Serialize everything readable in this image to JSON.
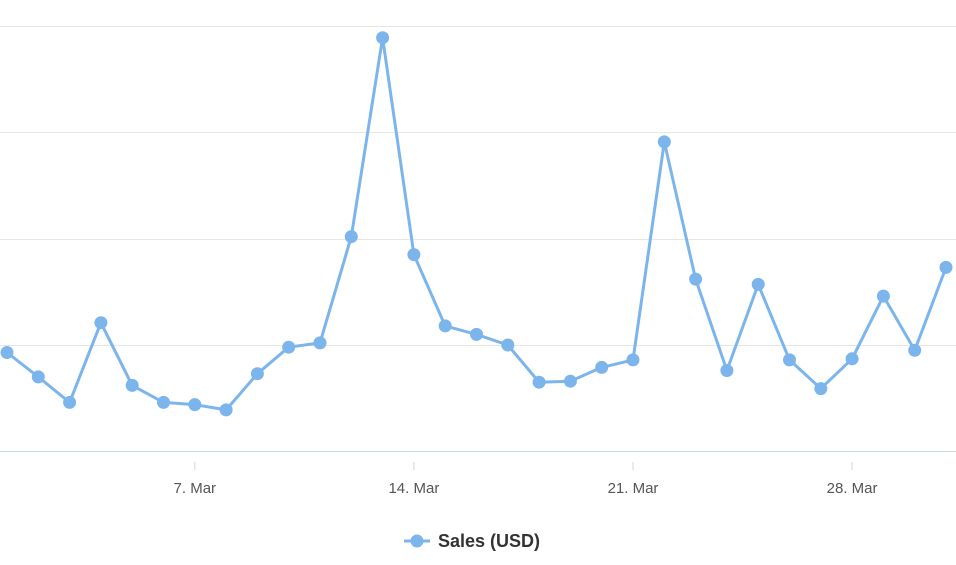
{
  "chart_data": {
    "type": "line",
    "title": "",
    "xlabel": "",
    "ylabel": "",
    "x": [
      "1. Mar",
      "2. Mar",
      "3. Mar",
      "4. Mar",
      "5. Mar",
      "6. Mar",
      "7. Mar",
      "8. Mar",
      "9. Mar",
      "10. Mar",
      "11. Mar",
      "12. Mar",
      "13. Mar",
      "14. Mar",
      "15. Mar",
      "16. Mar",
      "17. Mar",
      "18. Mar",
      "19. Mar",
      "20. Mar",
      "21. Mar",
      "22. Mar",
      "23. Mar",
      "24. Mar",
      "25. Mar",
      "26. Mar",
      "27. Mar",
      "28. Mar",
      "29. Mar",
      "30. Mar",
      "31. Mar"
    ],
    "x_ticks": [
      "7. Mar",
      "14. Mar",
      "21. Mar",
      "28. Mar"
    ],
    "series": [
      {
        "name": "Sales (USD)",
        "color": "#7cb5ec",
        "values": [
          0.93,
          0.7,
          0.46,
          1.21,
          0.62,
          0.46,
          0.44,
          0.39,
          0.73,
          0.98,
          1.02,
          2.02,
          3.89,
          1.85,
          1.18,
          1.1,
          1.0,
          0.65,
          0.66,
          0.79,
          0.86,
          2.91,
          1.62,
          0.76,
          1.57,
          0.86,
          0.59,
          0.87,
          1.46,
          0.95,
          1.73
        ]
      }
    ],
    "ylim": [
      -0.1,
      4.0
    ],
    "y_gridlines": [
      0,
      1,
      2,
      3,
      4
    ],
    "y_tick_labels_visible": false,
    "grid": true,
    "legend_position": "bottom-center"
  }
}
